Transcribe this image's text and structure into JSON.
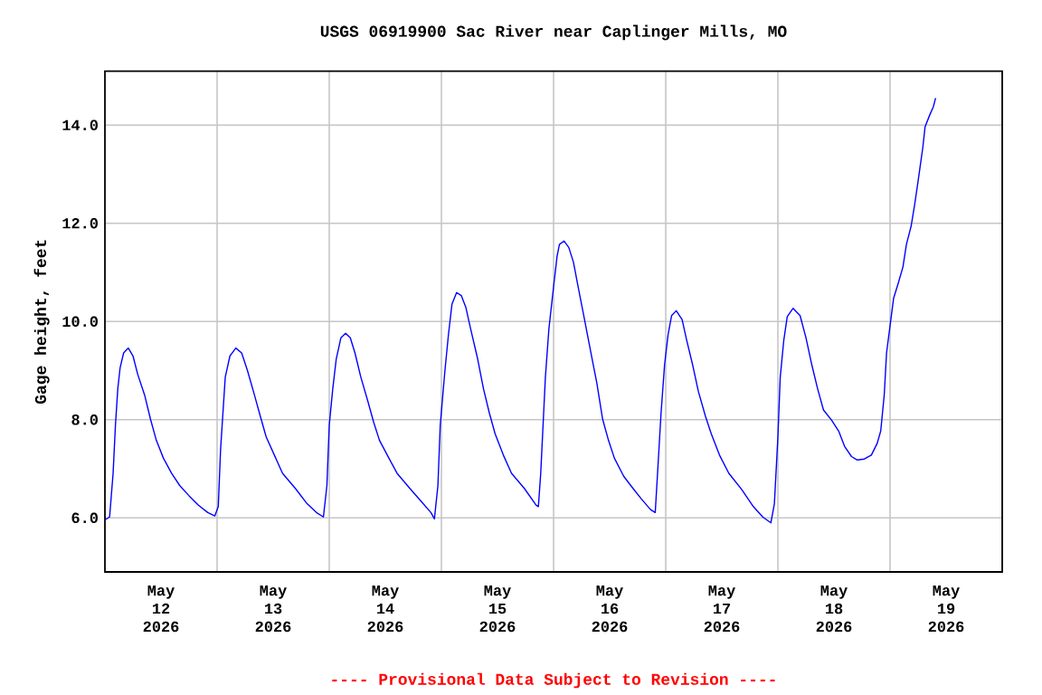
{
  "chart_data": {
    "type": "line",
    "title": "USGS 06919900 Sac River near Caplinger Mills, MO",
    "ylabel": "Gage height, feet",
    "annotations": [
      "---- Provisional Data Subject to Revision ----"
    ],
    "grid": true,
    "marker": "none",
    "line_style": "solid",
    "xlim": [
      "2026-05-12T00:00",
      "2026-05-20T00:00"
    ],
    "ylim": [
      4.9,
      15.1
    ],
    "xticks": [
      {
        "value": "2026-05-12T12:00",
        "label": "May 12 2026"
      },
      {
        "value": "2026-05-13T00:00",
        "label": null
      },
      {
        "value": "2026-05-13T12:00",
        "label": "May 13 2026"
      },
      {
        "value": "2026-05-14T00:00",
        "label": null
      },
      {
        "value": "2026-05-14T12:00",
        "label": "May 14 2026"
      },
      {
        "value": "2026-05-15T00:00",
        "label": null
      },
      {
        "value": "2026-05-15T12:00",
        "label": "May 15 2026"
      },
      {
        "value": "2026-05-16T00:00",
        "label": null
      },
      {
        "value": "2026-05-16T12:00",
        "label": "May 16 2026"
      },
      {
        "value": "2026-05-17T00:00",
        "label": null
      },
      {
        "value": "2026-05-17T12:00",
        "label": "May 17 2026"
      },
      {
        "value": "2026-05-18T00:00",
        "label": null
      },
      {
        "value": "2026-05-18T12:00",
        "label": "May 18 2026"
      },
      {
        "value": "2026-05-19T00:00",
        "label": null
      },
      {
        "value": "2026-05-19T12:00",
        "label": "May 19 2026"
      }
    ],
    "yticks": [
      {
        "value": 6,
        "label": "6.0"
      },
      {
        "value": 8,
        "label": "8.0"
      },
      {
        "value": 10,
        "label": "10.0"
      },
      {
        "value": 12,
        "label": "12.0"
      },
      {
        "value": 14,
        "label": "14.0"
      }
    ],
    "series": [
      {
        "color": "#0000ff",
        "x": [
          "2026-05-12T00:00",
          "2026-05-12T01:00",
          "2026-05-12T01:45",
          "2026-05-12T02:15",
          "2026-05-12T02:45",
          "2026-05-12T03:15",
          "2026-05-12T04:00",
          "2026-05-12T05:00",
          "2026-05-12T06:00",
          "2026-05-12T07:00",
          "2026-05-12T08:30",
          "2026-05-12T09:45",
          "2026-05-12T11:00",
          "2026-05-12T12:30",
          "2026-05-12T14:15",
          "2026-05-12T16:00",
          "2026-05-12T18:00",
          "2026-05-12T20:00",
          "2026-05-12T22:00",
          "2026-05-12T23:30",
          "2026-05-13T00:15",
          "2026-05-13T00:45",
          "2026-05-13T01:15",
          "2026-05-13T01:45",
          "2026-05-13T02:45",
          "2026-05-13T04:00",
          "2026-05-13T05:15",
          "2026-05-13T06:30",
          "2026-05-13T08:00",
          "2026-05-13T09:15",
          "2026-05-13T10:30",
          "2026-05-13T12:15",
          "2026-05-13T14:00",
          "2026-05-13T16:45",
          "2026-05-13T19:15",
          "2026-05-13T21:15",
          "2026-05-13T22:45",
          "2026-05-13T23:30",
          "2026-05-14T00:00",
          "2026-05-14T00:45",
          "2026-05-14T01:30",
          "2026-05-14T02:30",
          "2026-05-14T03:30",
          "2026-05-14T04:30",
          "2026-05-14T05:30",
          "2026-05-14T06:45",
          "2026-05-14T08:15",
          "2026-05-14T09:30",
          "2026-05-14T10:45",
          "2026-05-14T12:45",
          "2026-05-14T14:30",
          "2026-05-14T17:15",
          "2026-05-14T19:45",
          "2026-05-14T21:45",
          "2026-05-14T22:30",
          "2026-05-14T23:15",
          "2026-05-14T23:45",
          "2026-05-15T00:45",
          "2026-05-15T01:30",
          "2026-05-15T02:15",
          "2026-05-15T03:15",
          "2026-05-15T04:15",
          "2026-05-15T05:15",
          "2026-05-15T06:15",
          "2026-05-15T07:45",
          "2026-05-15T09:00",
          "2026-05-15T10:15",
          "2026-05-15T11:30",
          "2026-05-15T13:15",
          "2026-05-15T15:00",
          "2026-05-15T17:45",
          "2026-05-15T20:15",
          "2026-05-15T20:45",
          "2026-05-15T21:15",
          "2026-05-15T21:45",
          "2026-05-15T22:15",
          "2026-05-15T23:00",
          "2026-05-16T00:00",
          "2026-05-16T00:45",
          "2026-05-16T01:15",
          "2026-05-16T02:15",
          "2026-05-16T03:15",
          "2026-05-16T04:15",
          "2026-05-16T05:15",
          "2026-05-16T06:30",
          "2026-05-16T08:00",
          "2026-05-16T09:15",
          "2026-05-16T10:30",
          "2026-05-16T11:45",
          "2026-05-16T13:00",
          "2026-05-16T15:00",
          "2026-05-16T17:00",
          "2026-05-16T18:45",
          "2026-05-16T20:45",
          "2026-05-16T21:45",
          "2026-05-16T22:15",
          "2026-05-16T23:00",
          "2026-05-16T23:45",
          "2026-05-17T00:30",
          "2026-05-17T01:15",
          "2026-05-17T02:15",
          "2026-05-17T03:30",
          "2026-05-17T04:30",
          "2026-05-17T05:45",
          "2026-05-17T07:00",
          "2026-05-17T08:30",
          "2026-05-17T09:45",
          "2026-05-17T11:30",
          "2026-05-17T13:30",
          "2026-05-17T16:15",
          "2026-05-17T18:45",
          "2026-05-17T20:45",
          "2026-05-17T22:30",
          "2026-05-17T23:15",
          "2026-05-18T00:00",
          "2026-05-18T00:30",
          "2026-05-18T01:15",
          "2026-05-18T02:00",
          "2026-05-18T03:15",
          "2026-05-18T04:45",
          "2026-05-18T06:00",
          "2026-05-18T07:15",
          "2026-05-18T08:30",
          "2026-05-18T09:45",
          "2026-05-18T11:30",
          "2026-05-18T13:00",
          "2026-05-18T14:15",
          "2026-05-18T15:45",
          "2026-05-18T17:00",
          "2026-05-18T18:30",
          "2026-05-18T20:00",
          "2026-05-18T21:15",
          "2026-05-18T22:00",
          "2026-05-18T22:45",
          "2026-05-18T23:15",
          "2026-05-19T00:15",
          "2026-05-19T00:45",
          "2026-05-19T01:45",
          "2026-05-19T02:45",
          "2026-05-19T03:30",
          "2026-05-19T04:30",
          "2026-05-19T05:15",
          "2026-05-19T06:00",
          "2026-05-19T07:00",
          "2026-05-19T07:30",
          "2026-05-19T08:30",
          "2026-05-19T09:15",
          "2026-05-19T09:45"
        ],
        "values": [
          5.96,
          6.02,
          6.91,
          7.89,
          8.63,
          9.06,
          9.36,
          9.46,
          9.3,
          8.93,
          8.5,
          8.01,
          7.58,
          7.22,
          6.91,
          6.66,
          6.45,
          6.26,
          6.11,
          6.04,
          6.23,
          7.4,
          8.14,
          8.87,
          9.3,
          9.46,
          9.36,
          9.0,
          8.5,
          8.07,
          7.65,
          7.28,
          6.91,
          6.6,
          6.29,
          6.11,
          6.02,
          6.66,
          7.89,
          8.63,
          9.24,
          9.67,
          9.76,
          9.67,
          9.36,
          8.87,
          8.38,
          7.95,
          7.58,
          7.22,
          6.91,
          6.6,
          6.33,
          6.11,
          5.98,
          6.66,
          7.89,
          9.0,
          9.73,
          10.35,
          10.59,
          10.53,
          10.28,
          9.85,
          9.24,
          8.63,
          8.14,
          7.71,
          7.28,
          6.91,
          6.6,
          6.26,
          6.23,
          6.91,
          7.89,
          8.87,
          9.85,
          10.71,
          11.33,
          11.57,
          11.64,
          11.51,
          11.21,
          10.71,
          10.1,
          9.36,
          8.75,
          8.01,
          7.58,
          7.22,
          6.85,
          6.6,
          6.39,
          6.17,
          6.11,
          6.91,
          8.14,
          9.12,
          9.73,
          10.12,
          10.22,
          10.04,
          9.61,
          9.12,
          8.57,
          8.07,
          7.71,
          7.28,
          6.91,
          6.58,
          6.23,
          6.02,
          5.9,
          6.29,
          7.65,
          8.87,
          9.61,
          10.1,
          10.27,
          10.12,
          9.67,
          9.12,
          8.63,
          8.2,
          7.99,
          7.77,
          7.46,
          7.25,
          7.18,
          7.2,
          7.28,
          7.52,
          7.77,
          8.5,
          9.36,
          10.1,
          10.47,
          10.78,
          11.11,
          11.57,
          11.94,
          12.37,
          12.86,
          13.54,
          13.97,
          14.21,
          14.37,
          14.55
        ]
      }
    ]
  }
}
